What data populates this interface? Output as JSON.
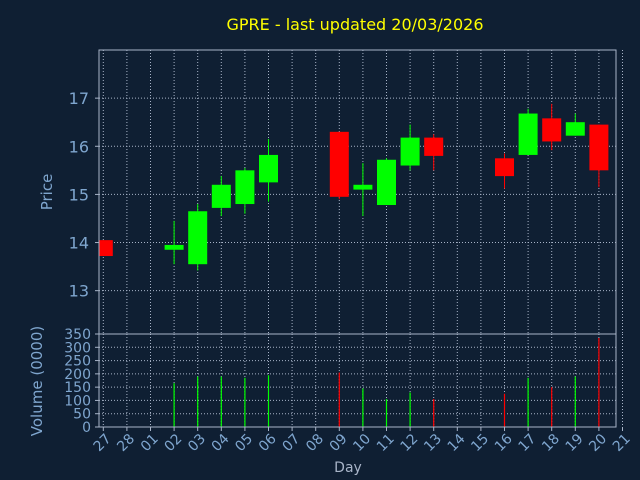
{
  "chart_data": [
    {
      "type": "candlestick",
      "title": "GPRE - last updated 20/03/2026",
      "xlabel": "Day",
      "ylabel": "Price",
      "ylim": [
        12.1,
        18.0
      ],
      "y_ticks": [
        13,
        14,
        15,
        16,
        17
      ],
      "grid": true,
      "x_tick_labels": [
        "27",
        "28",
        "01",
        "02",
        "03",
        "04",
        "05",
        "06",
        "07",
        "08",
        "09",
        "10",
        "11",
        "12",
        "13",
        "14",
        "15",
        "16",
        "17",
        "18",
        "19",
        "20",
        "21"
      ],
      "candles": [
        {
          "x": "27",
          "open": 14.05,
          "high": 14.05,
          "low": 13.72,
          "close": 13.72
        },
        {
          "x": "02",
          "open": 13.85,
          "high": 14.45,
          "low": 13.55,
          "close": 13.95
        },
        {
          "x": "03",
          "open": 13.55,
          "high": 14.8,
          "low": 13.42,
          "close": 14.65
        },
        {
          "x": "04",
          "open": 14.72,
          "high": 15.38,
          "low": 14.55,
          "close": 15.2
        },
        {
          "x": "05",
          "open": 14.8,
          "high": 15.55,
          "low": 14.6,
          "close": 15.5
        },
        {
          "x": "06",
          "open": 15.25,
          "high": 16.15,
          "low": 14.85,
          "close": 15.82
        },
        {
          "x": "09",
          "open": 16.3,
          "high": 16.3,
          "low": 14.9,
          "close": 14.95
        },
        {
          "x": "10",
          "open": 15.1,
          "high": 15.65,
          "low": 14.55,
          "close": 15.2
        },
        {
          "x": "11",
          "open": 14.78,
          "high": 15.75,
          "low": 14.78,
          "close": 15.72
        },
        {
          "x": "12",
          "open": 15.6,
          "high": 16.45,
          "low": 15.5,
          "close": 16.18
        },
        {
          "x": "13",
          "open": 16.18,
          "high": 16.25,
          "low": 15.5,
          "close": 15.8
        },
        {
          "x": "16",
          "open": 15.75,
          "high": 15.85,
          "low": 15.12,
          "close": 15.38
        },
        {
          "x": "17",
          "open": 15.82,
          "high": 16.78,
          "low": 15.82,
          "close": 16.68
        },
        {
          "x": "18",
          "open": 16.58,
          "high": 16.88,
          "low": 15.92,
          "close": 16.1
        },
        {
          "x": "19",
          "open": 16.22,
          "high": 16.68,
          "low": 16.22,
          "close": 16.5
        },
        {
          "x": "20",
          "open": 16.45,
          "high": 16.45,
          "low": 15.15,
          "close": 15.5
        }
      ]
    },
    {
      "type": "bar",
      "ylabel": "Volume (0000)",
      "xlabel": "Day",
      "ylim": [
        0,
        350
      ],
      "y_ticks": [
        0,
        50,
        100,
        150,
        200,
        250,
        300,
        350
      ],
      "categories": [
        "02",
        "03",
        "04",
        "05",
        "06",
        "09",
        "10",
        "11",
        "12",
        "13",
        "16",
        "17",
        "18",
        "19",
        "20"
      ],
      "values": [
        165,
        190,
        190,
        185,
        195,
        205,
        145,
        105,
        130,
        105,
        125,
        185,
        150,
        190,
        335
      ],
      "direction": [
        "up",
        "up",
        "up",
        "up",
        "up",
        "down",
        "up",
        "up",
        "up",
        "down",
        "down",
        "up",
        "down",
        "up",
        "down"
      ]
    }
  ],
  "colors": {
    "background": "#0f1f33",
    "axes": "#a8b4c8",
    "grid": "#a8b4c8",
    "tick_text": "#7fa6cf",
    "title": "#ffff00",
    "up": "#00ff00",
    "down": "#ff0000"
  }
}
